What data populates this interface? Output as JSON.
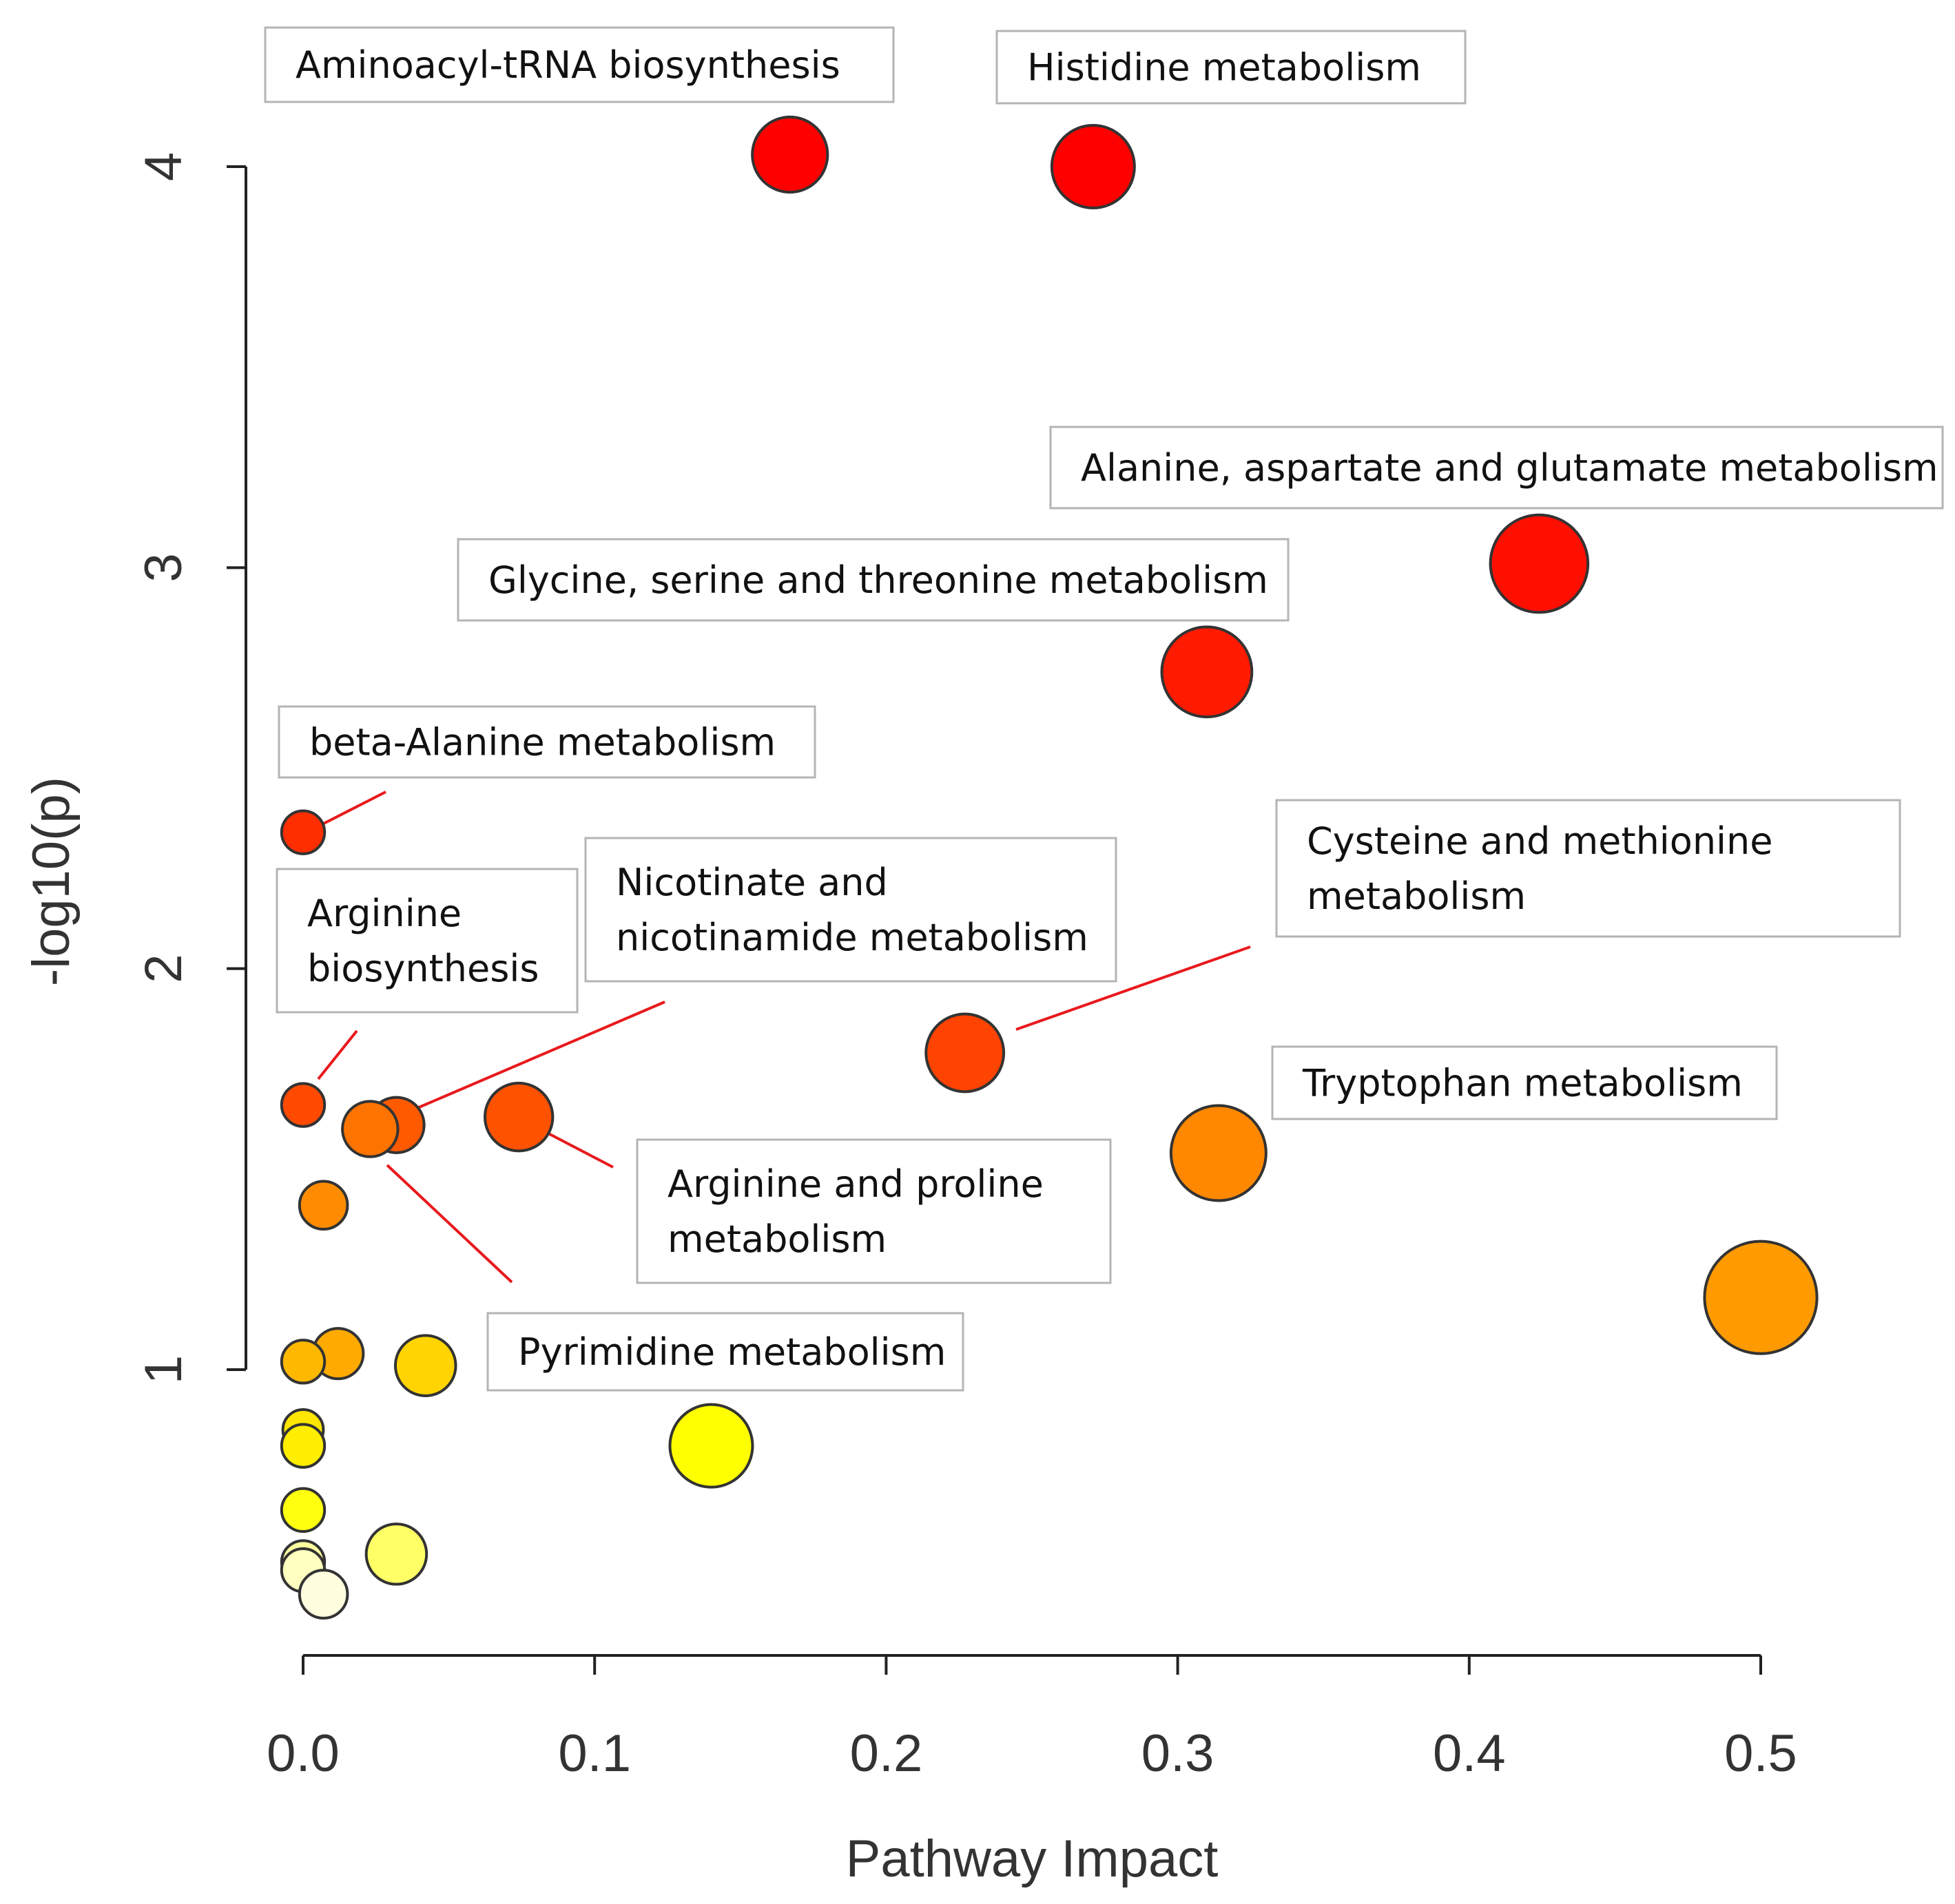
{
  "chart_data": {
    "type": "scatter",
    "title": "",
    "xlabel": "Pathway Impact",
    "ylabel": "-log10(p)",
    "xlim": [
      0,
      0.5
    ],
    "ylim": [
      0.3,
      4.25
    ],
    "x_ticks": [
      "0.0",
      "0.1",
      "0.2",
      "0.3",
      "0.4",
      "0.5"
    ],
    "y_ticks": [
      "1",
      "2",
      "3",
      "4"
    ],
    "points": [
      {
        "x": 0.167,
        "y": 4.03,
        "size": 0.34,
        "color": "#ff0000"
      },
      {
        "x": 0.271,
        "y": 4.0,
        "size": 0.4,
        "color": "#ff0000"
      },
      {
        "x": 0.424,
        "y": 3.01,
        "size": 0.52,
        "color": "#ff0f00"
      },
      {
        "x": 0.31,
        "y": 2.74,
        "size": 0.46,
        "color": "#ff1a00"
      },
      {
        "x": 0.0,
        "y": 2.34,
        "size": 0.08,
        "color": "#ff2e00"
      },
      {
        "x": 0.227,
        "y": 1.79,
        "size": 0.36,
        "color": "#ff4300"
      },
      {
        "x": 0.0,
        "y": 1.66,
        "size": 0.08,
        "color": "#ff4a00"
      },
      {
        "x": 0.074,
        "y": 1.63,
        "size": 0.28,
        "color": "#ff5200"
      },
      {
        "x": 0.032,
        "y": 1.61,
        "size": 0.18,
        "color": "#ff5a00"
      },
      {
        "x": 0.023,
        "y": 1.6,
        "size": 0.18,
        "color": "#ff7400"
      },
      {
        "x": 0.314,
        "y": 1.54,
        "size": 0.5,
        "color": "#ff8800"
      },
      {
        "x": 0.007,
        "y": 1.41,
        "size": 0.12,
        "color": "#ff8c00"
      },
      {
        "x": 0.5,
        "y": 1.18,
        "size": 0.64,
        "color": "#ff9a00"
      },
      {
        "x": 0.012,
        "y": 1.04,
        "size": 0.14,
        "color": "#ffaa00"
      },
      {
        "x": 0.0,
        "y": 1.02,
        "size": 0.08,
        "color": "#ffb800"
      },
      {
        "x": 0.042,
        "y": 1.01,
        "size": 0.22,
        "color": "#ffd400"
      },
      {
        "x": 0.14,
        "y": 0.81,
        "size": 0.4,
        "color": "#ffff00"
      },
      {
        "x": 0.0,
        "y": 0.85,
        "size": 0.06,
        "color": "#ffe600"
      },
      {
        "x": 0.0,
        "y": 0.81,
        "size": 0.08,
        "color": "#ffee00"
      },
      {
        "x": 0.0,
        "y": 0.65,
        "size": 0.08,
        "color": "#ffff10"
      },
      {
        "x": 0.032,
        "y": 0.54,
        "size": 0.22,
        "color": "#ffff66"
      },
      {
        "x": 0.0,
        "y": 0.52,
        "size": 0.08,
        "color": "#ffffa0"
      },
      {
        "x": 0.0,
        "y": 0.5,
        "size": 0.08,
        "color": "#ffffc0"
      },
      {
        "x": 0.007,
        "y": 0.44,
        "size": 0.12,
        "color": "#ffffe0"
      }
    ],
    "annotations": [
      {
        "lines": [
          "Aminoacyl-tRNA biosynthesis"
        ]
      },
      {
        "lines": [
          "Histidine metabolism"
        ]
      },
      {
        "lines": [
          "Alanine, aspartate and glutamate metabolism"
        ]
      },
      {
        "lines": [
          "Glycine, serine and threonine metabolism"
        ]
      },
      {
        "lines": [
          "beta-Alanine metabolism"
        ]
      },
      {
        "lines": [
          "Arginine",
          "biosynthesis"
        ]
      },
      {
        "lines": [
          "Nicotinate and",
          "nicotinamide metabolism"
        ]
      },
      {
        "lines": [
          "Cysteine and methionine",
          "metabolism"
        ]
      },
      {
        "lines": [
          "Tryptophan metabolism"
        ]
      },
      {
        "lines": [
          "Arginine and proline",
          "metabolism"
        ]
      },
      {
        "lines": [
          "Pyrimidine metabolism"
        ]
      }
    ],
    "leader_color": "#e8191c",
    "grid": false,
    "legend": "none"
  }
}
